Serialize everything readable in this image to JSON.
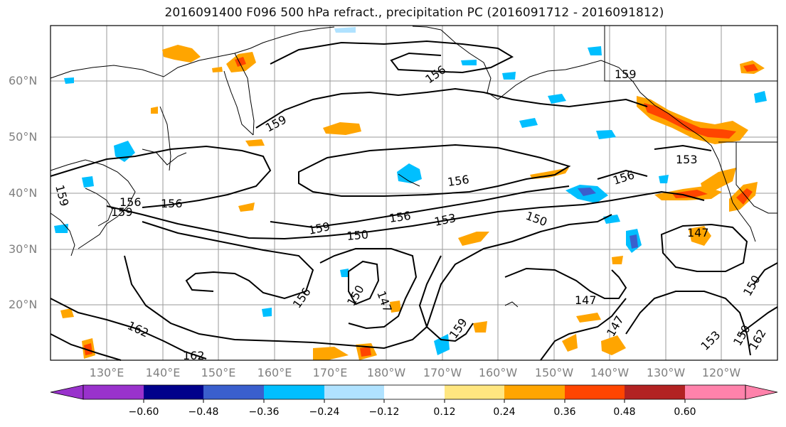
{
  "title": "2016091400 F096 500 hPa refract., precipitation PC (2016091712 - 2016091812)",
  "lat_labels": [
    "60°N",
    "50°N",
    "40°N",
    "30°N",
    "20°N"
  ],
  "lon_labels": [
    "130°E",
    "140°E",
    "150°E",
    "160°E",
    "170°E",
    "180°W",
    "170°W",
    "160°W",
    "150°W",
    "140°W",
    "130°W",
    "120°W"
  ],
  "contour_labels": [
    "156",
    "159",
    "159",
    "153",
    "156",
    "159",
    "156",
    "156",
    "150",
    "153",
    "150",
    "156",
    "147",
    "159",
    "156",
    "150",
    "147",
    "147",
    "159",
    "153",
    "156",
    "150",
    "159",
    "162",
    "162",
    "150",
    "162",
    "147"
  ],
  "colorbar": {
    "labels": [
      "−0.60",
      "−0.48",
      "−0.36",
      "−0.24",
      "−0.12",
      "0.12",
      "0.24",
      "0.36",
      "0.48",
      "0.60"
    ],
    "colors": [
      "#9932cc",
      "#00008b",
      "#3a5fcd",
      "#00bfff",
      "#b0e2ff",
      "#ffffff",
      "#ffe680",
      "#ffa500",
      "#ff4500",
      "#b22222",
      "#ff82ab"
    ]
  }
}
